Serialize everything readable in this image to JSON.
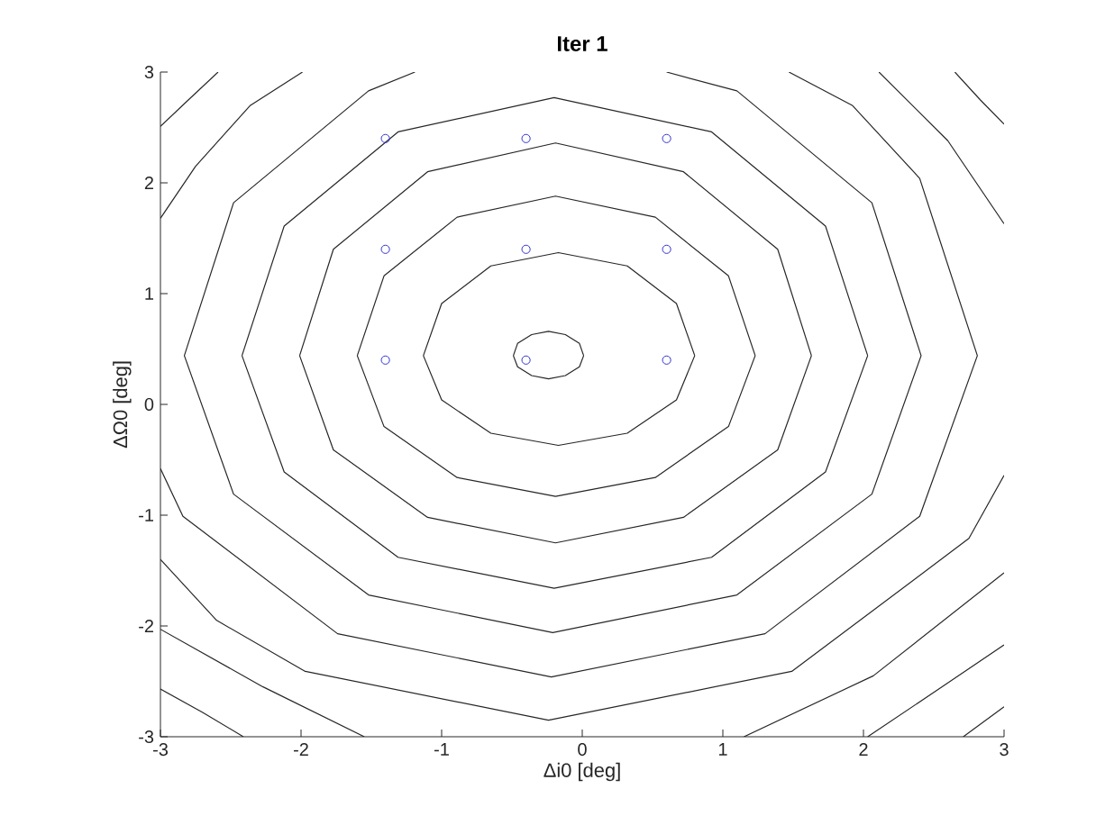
{
  "chart_data": {
    "type": "scatter",
    "title": "Iter 1",
    "xlabel": "Δi0 [deg]",
    "ylabel": "ΔΩ0 [deg]",
    "xlim": [
      -3,
      3
    ],
    "ylim": [
      -3,
      3
    ],
    "xticks": [
      -3,
      -2,
      -1,
      0,
      1,
      2,
      3
    ],
    "yticks": [
      -3,
      -2,
      -1,
      0,
      1,
      2,
      3
    ],
    "marker": "circle",
    "series": [
      {
        "color": "#3333cc",
        "x": [
          -1.4,
          -0.4,
          0.6,
          -1.4,
          -0.4,
          0.6,
          -1.4,
          -0.4,
          0.6
        ],
        "values": [
          2.4,
          2.4,
          2.4,
          1.4,
          1.4,
          1.4,
          0.4,
          0.4,
          0.4
        ]
      },
      {
        "type": "line",
        "marker": "none",
        "color": "#262626",
        "x": [
          0.01,
          -0.02,
          -0.12,
          -0.24,
          -0.36,
          -0.46,
          -0.49
        ],
        "values": [
          0.44,
          0.55,
          0.63,
          0.66,
          0.63,
          0.55,
          0.44
        ]
      },
      {
        "type": "line",
        "marker": "none",
        "color": "#262626",
        "x": [
          -0.49,
          -0.46,
          -0.36,
          -0.24,
          -0.12,
          -0.02,
          0.01
        ],
        "values": [
          0.44,
          0.34,
          0.26,
          0.23,
          0.26,
          0.34,
          0.44
        ]
      },
      {
        "type": "line",
        "marker": "none",
        "color": "#262626",
        "x": [
          0.8,
          0.67,
          0.32,
          -0.17,
          -0.65,
          -1.0,
          -1.13
        ],
        "values": [
          0.44,
          0.91,
          1.25,
          1.37,
          1.25,
          0.91,
          0.44
        ]
      },
      {
        "type": "line",
        "marker": "none",
        "color": "#262626",
        "x": [
          -1.13,
          -1.0,
          -0.65,
          -0.17,
          0.32,
          0.67,
          0.8
        ],
        "values": [
          0.44,
          0.04,
          -0.26,
          -0.37,
          -0.26,
          0.04,
          0.44
        ]
      },
      {
        "type": "line",
        "marker": "none",
        "color": "#262626",
        "x": [
          1.23,
          1.04,
          0.52,
          -0.19,
          -0.89,
          -1.41,
          -1.6
        ],
        "values": [
          0.44,
          1.16,
          1.69,
          1.88,
          1.69,
          1.16,
          0.44
        ]
      },
      {
        "type": "line",
        "marker": "none",
        "color": "#262626",
        "x": [
          -1.6,
          -1.41,
          -0.89,
          -0.19,
          0.52,
          1.04,
          1.23
        ],
        "values": [
          0.44,
          -0.2,
          -0.66,
          -0.83,
          -0.66,
          -0.2,
          0.44
        ]
      },
      {
        "type": "line",
        "marker": "none",
        "color": "#262626",
        "x": [
          1.63,
          1.39,
          0.72,
          -0.19,
          -1.1,
          -1.77,
          -2.01
        ],
        "values": [
          0.44,
          1.4,
          2.1,
          2.36,
          2.1,
          1.4,
          0.44
        ]
      },
      {
        "type": "line",
        "marker": "none",
        "color": "#262626",
        "x": [
          -2.01,
          -1.77,
          -1.1,
          -0.19,
          0.72,
          1.39,
          1.63
        ],
        "values": [
          0.44,
          -0.41,
          -1.02,
          -1.25,
          -1.02,
          -0.41,
          0.44
        ]
      },
      {
        "type": "line",
        "marker": "none",
        "color": "#262626",
        "x": [
          2.03,
          1.73,
          0.92,
          -0.2,
          -1.31,
          -2.12,
          -2.42
        ],
        "values": [
          0.44,
          1.61,
          2.46,
          2.77,
          2.46,
          1.61,
          0.44
        ]
      },
      {
        "type": "line",
        "marker": "none",
        "color": "#262626",
        "x": [
          -2.42,
          -2.12,
          -1.31,
          -0.2,
          0.92,
          1.73,
          2.03
        ],
        "values": [
          0.44,
          -0.61,
          -1.38,
          -1.66,
          -1.38,
          -0.61,
          0.44
        ]
      },
      {
        "type": "line",
        "marker": "none",
        "color": "#262626",
        "x": [
          0.6,
          1.1,
          2.06,
          2.41,
          2.06,
          1.1,
          -0.21,
          -1.52,
          -2.48,
          -2.83,
          -2.48,
          -1.52,
          -1.19
        ],
        "values": [
          3,
          2.83,
          1.82,
          0.44,
          -0.81,
          -1.72,
          -2.06,
          -1.72,
          -0.81,
          0.44,
          1.82,
          2.83,
          3
        ]
      },
      {
        "type": "line",
        "marker": "none",
        "color": "#262626",
        "x": [
          -1.99,
          -2.36,
          -2.75,
          -3
        ],
        "values": [
          3,
          2.7,
          2.15,
          1.68
        ]
      },
      {
        "type": "line",
        "marker": "none",
        "color": "#262626",
        "x": [
          -3,
          -2.84,
          -1.74,
          -0.22,
          1.3,
          2.4,
          2.81,
          2.4,
          1.92,
          1.47
        ],
        "values": [
          -0.58,
          -1.01,
          -2.07,
          -2.46,
          -2.07,
          -1.01,
          0.44,
          2.04,
          2.7,
          3
        ]
      },
      {
        "type": "line",
        "marker": "none",
        "color": "#262626",
        "x": [
          -2.59,
          -2.8,
          -3
        ],
        "values": [
          3,
          2.75,
          2.51
        ]
      },
      {
        "type": "line",
        "marker": "none",
        "color": "#262626",
        "x": [
          -3,
          -2.6,
          -1.97,
          -0.24,
          1.49,
          2.75,
          3
        ],
        "values": [
          -1.4,
          -1.95,
          -2.41,
          -2.85,
          -2.41,
          -1.21,
          -0.64
        ]
      },
      {
        "type": "line",
        "marker": "none",
        "color": "#262626",
        "x": [
          3,
          2.6,
          2.11
        ],
        "values": [
          1.63,
          2.38,
          3
        ]
      },
      {
        "type": "line",
        "marker": "none",
        "color": "#262626",
        "x": [
          2.65,
          2.83,
          3
        ],
        "values": [
          3,
          2.75,
          2.53
        ]
      },
      {
        "type": "line",
        "marker": "none",
        "color": "#262626",
        "x": [
          -3,
          -2.27,
          -1.55
        ],
        "values": [
          -2.03,
          -2.55,
          -3
        ]
      },
      {
        "type": "line",
        "marker": "none",
        "color": "#262626",
        "x": [
          1.15,
          2.07,
          3
        ],
        "values": [
          -3,
          -2.45,
          -1.52
        ]
      },
      {
        "type": "line",
        "marker": "none",
        "color": "#262626",
        "x": [
          -3,
          -2.7,
          -2.41
        ],
        "values": [
          -2.57,
          -2.78,
          -3
        ]
      },
      {
        "type": "line",
        "marker": "none",
        "color": "#262626",
        "x": [
          2.03,
          2.5,
          3
        ],
        "values": [
          -3,
          -2.6,
          -2.17
        ]
      },
      {
        "type": "line",
        "marker": "none",
        "color": "#262626",
        "x": [
          2.71,
          3
        ],
        "values": [
          -3,
          -2.73
        ]
      }
    ]
  }
}
